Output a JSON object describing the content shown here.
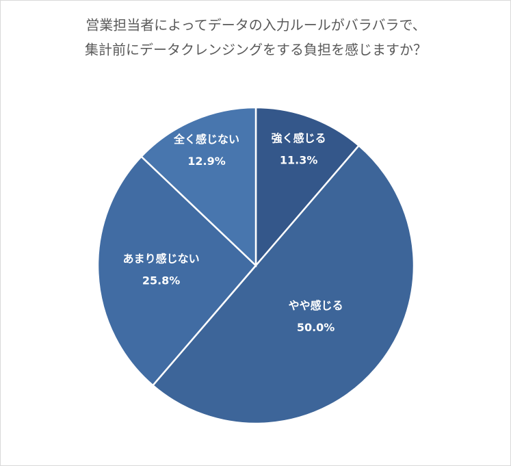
{
  "chart_data": {
    "type": "pie",
    "title": [
      "営業担当者によってデータの入力ルールがバラバラで、",
      "集計前にデータクレンジングをする負担を感じますか？"
    ],
    "categories": [
      "強く感じる",
      "やや感じる",
      "あまり感じない",
      "全く感じない"
    ],
    "values": [
      11.3,
      50.0,
      25.8,
      12.9
    ],
    "value_labels": [
      "11.3%",
      "50.0%",
      "25.8%",
      "12.9%"
    ],
    "colors": [
      "#34578a",
      "#3d6599",
      "#416ca3",
      "#4876ae"
    ]
  }
}
